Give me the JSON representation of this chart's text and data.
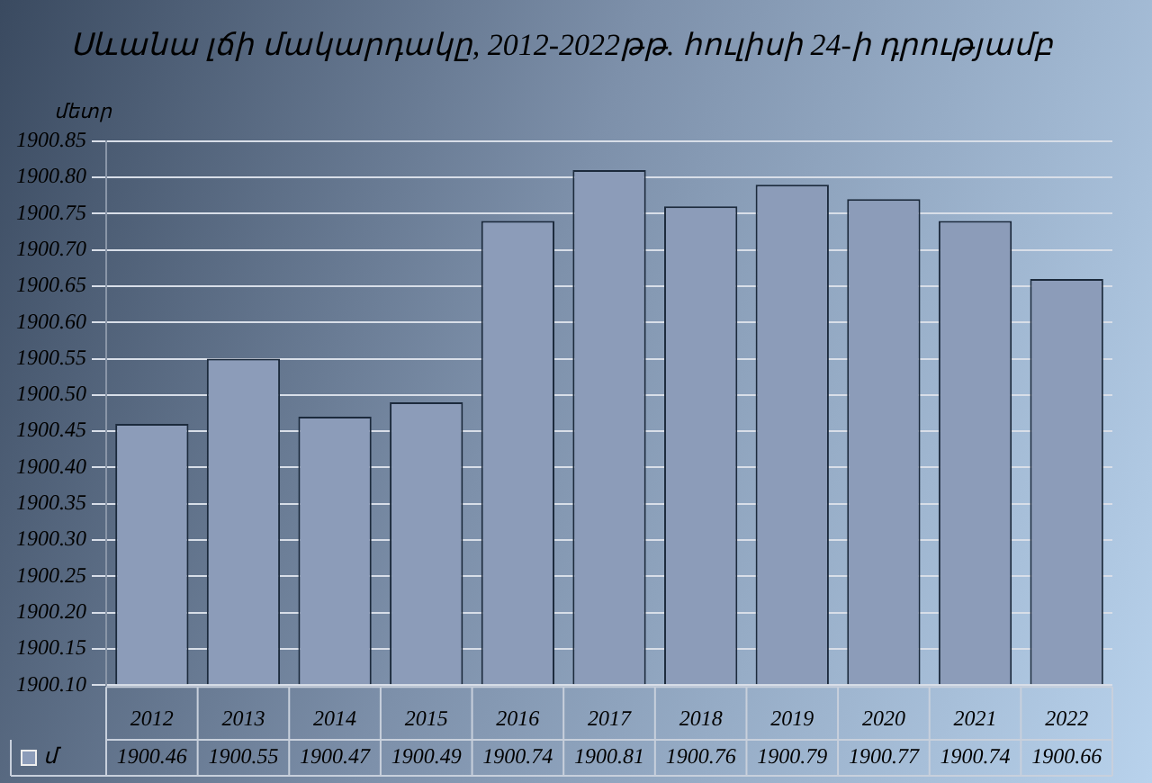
{
  "chart_data": {
    "type": "bar",
    "title": "Սևանա լճի մակարդակը, 2012-2022թթ. հուլիսի 24-ի դրությամբ",
    "ylabel": "մետր",
    "categories": [
      "2012",
      "2013",
      "2014",
      "2015",
      "2016",
      "2017",
      "2018",
      "2019",
      "2020",
      "2021",
      "2022"
    ],
    "series": [
      {
        "name": "մ",
        "color": "#8c9cb9",
        "values": [
          1900.46,
          1900.55,
          1900.47,
          1900.49,
          1900.74,
          1900.81,
          1900.76,
          1900.79,
          1900.77,
          1900.74,
          1900.66
        ]
      }
    ],
    "ylim": [
      1900.1,
      1900.85
    ],
    "yticks": [
      {
        "value": 1900.1,
        "label": "1900.10"
      },
      {
        "value": 1900.15,
        "label": "1900.15"
      },
      {
        "value": 1900.2,
        "label": "1900.20"
      },
      {
        "value": 1900.25,
        "label": "1900.25"
      },
      {
        "value": 1900.3,
        "label": "1900.30"
      },
      {
        "value": 1900.35,
        "label": "1900.35"
      },
      {
        "value": 1900.4,
        "label": "1900.40"
      },
      {
        "value": 1900.45,
        "label": "1900.45"
      },
      {
        "value": 1900.5,
        "label": "1900.50"
      },
      {
        "value": 1900.55,
        "label": "1900.55"
      },
      {
        "value": 1900.6,
        "label": "1900.60"
      },
      {
        "value": 1900.65,
        "label": "1900.65"
      },
      {
        "value": 1900.7,
        "label": "1900.70"
      },
      {
        "value": 1900.75,
        "label": "1900.75"
      },
      {
        "value": 1900.8,
        "label": "1900.80"
      },
      {
        "value": 1900.85,
        "label": "1900.85"
      }
    ],
    "grid": "y",
    "legend": "bottom",
    "data_labels": true
  }
}
